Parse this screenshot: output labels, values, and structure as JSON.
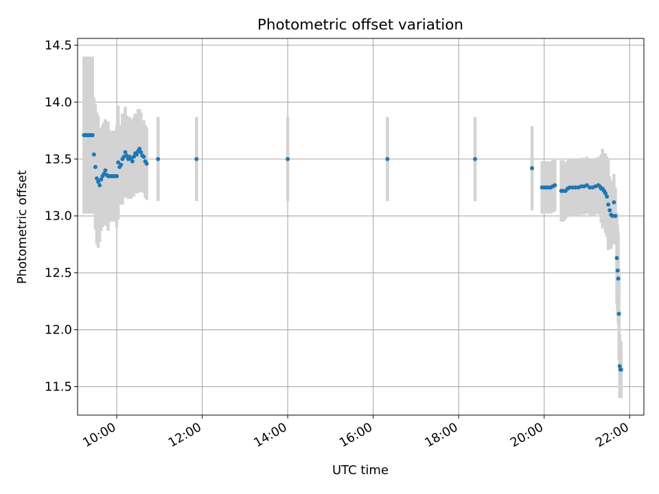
{
  "chart_data": {
    "type": "scatter",
    "title": "Photometric offset variation",
    "xlabel": "UTC time",
    "ylabel": "Photometric offset",
    "xlim": [
      "09:05",
      "22:20"
    ],
    "ylim": [
      11.25,
      14.56
    ],
    "x_ticks": [
      "10:00",
      "12:00",
      "14:00",
      "16:00",
      "18:00",
      "20:00",
      "22:00"
    ],
    "y_ticks": [
      "11.5",
      "12.0",
      "12.5",
      "13.0",
      "13.5",
      "14.0",
      "14.5"
    ],
    "grid": true,
    "colors": {
      "point": "#1f77b4",
      "errorbar": "#d3d3d3",
      "grid": "#b0b0b0"
    },
    "series": [
      {
        "x": [
          "09:14",
          "09:16",
          "09:18",
          "09:20",
          "09:22",
          "09:24",
          "09:26",
          "09:28",
          "09:30",
          "09:32",
          "09:34",
          "09:36",
          "09:38",
          "09:40",
          "09:42",
          "09:44",
          "09:46",
          "09:48",
          "09:50",
          "09:52",
          "09:54",
          "09:56",
          "09:58",
          "10:00",
          "10:02",
          "10:04",
          "10:06",
          "10:08",
          "10:10",
          "10:12",
          "10:14",
          "10:16",
          "10:18",
          "10:20",
          "10:22",
          "10:24",
          "10:26",
          "10:28",
          "10:30",
          "10:32",
          "10:34",
          "10:36",
          "10:38",
          "10:40",
          "10:42",
          "10:58",
          "11:52",
          "14:00",
          "16:20",
          "18:23",
          "19:43",
          "19:57",
          "20:00",
          "20:03",
          "20:06",
          "20:09",
          "20:12",
          "20:15",
          "20:24",
          "20:27",
          "20:30",
          "20:33",
          "20:36",
          "20:40",
          "20:44",
          "20:48",
          "20:52",
          "20:56",
          "21:00",
          "21:04",
          "21:08",
          "21:12",
          "21:16",
          "21:18",
          "21:20",
          "21:22",
          "21:24",
          "21:26",
          "21:28",
          "21:30",
          "21:32",
          "21:34",
          "21:36",
          "21:38",
          "21:40",
          "21:42",
          "21:43",
          "21:44",
          "21:45",
          "21:46",
          "21:47",
          "21:48"
        ],
        "y": [
          13.71,
          13.71,
          13.71,
          13.71,
          13.71,
          13.71,
          13.71,
          13.54,
          13.43,
          13.33,
          13.3,
          13.27,
          13.32,
          13.35,
          13.37,
          13.4,
          13.36,
          13.35,
          13.35,
          13.35,
          13.35,
          13.35,
          13.35,
          13.35,
          13.47,
          13.43,
          13.45,
          13.5,
          13.52,
          13.56,
          13.53,
          13.5,
          13.52,
          13.5,
          13.48,
          13.52,
          13.55,
          13.54,
          13.57,
          13.59,
          13.56,
          13.53,
          13.52,
          13.48,
          13.46,
          13.5,
          13.5,
          13.5,
          13.5,
          13.5,
          13.42,
          13.25,
          13.25,
          13.25,
          13.25,
          13.25,
          13.26,
          13.27,
          13.22,
          13.22,
          13.22,
          13.24,
          13.25,
          13.25,
          13.25,
          13.25,
          13.26,
          13.26,
          13.27,
          13.25,
          13.25,
          13.26,
          13.27,
          13.26,
          13.24,
          13.24,
          13.22,
          13.2,
          13.17,
          13.1,
          13.05,
          13.01,
          13.0,
          13.12,
          13.0,
          12.63,
          12.52,
          12.45,
          12.14,
          11.68,
          11.65,
          11.65
        ],
        "err": [
          0.69,
          0.69,
          0.69,
          0.69,
          0.69,
          0.69,
          0.69,
          0.5,
          0.55,
          0.58,
          0.58,
          0.5,
          0.45,
          0.45,
          0.45,
          0.45,
          0.45,
          0.48,
          0.4,
          0.4,
          0.4,
          0.4,
          0.4,
          0.45,
          0.5,
          0.3,
          0.35,
          0.4,
          0.35,
          0.4,
          0.35,
          0.35,
          0.35,
          0.35,
          0.3,
          0.35,
          0.35,
          0.3,
          0.37,
          0.35,
          0.35,
          0.3,
          0.32,
          0.32,
          0.32,
          0.37,
          0.37,
          0.37,
          0.37,
          0.37,
          0.37,
          0.23,
          0.23,
          0.23,
          0.23,
          0.23,
          0.23,
          0.23,
          0.27,
          0.27,
          0.25,
          0.25,
          0.25,
          0.25,
          0.25,
          0.25,
          0.25,
          0.25,
          0.25,
          0.25,
          0.25,
          0.25,
          0.25,
          0.25,
          0.3,
          0.35,
          0.3,
          0.35,
          0.35,
          0.4,
          0.3,
          0.3,
          0.25,
          0.25,
          0.25,
          0.4,
          0.4,
          0.4,
          0.4,
          0.28,
          0.25,
          0.25
        ]
      }
    ]
  }
}
